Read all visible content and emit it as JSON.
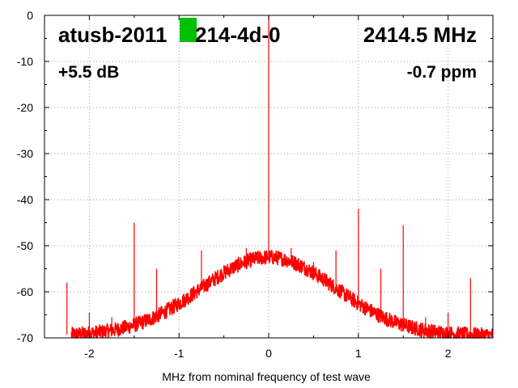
{
  "chart_data": {
    "type": "line",
    "title": "atusb-2011",
    "title_suffix": "214-4d-0",
    "frequency_label": "2414.5 MHz",
    "gain_label": "+5.5 dB",
    "ppm_label": "-0.7 ppm",
    "xlabel": "MHz from nominal frequency of test wave",
    "ylabel": "",
    "xlim": [
      -2.5,
      2.5
    ],
    "ylim": [
      -70,
      0
    ],
    "xticks": [
      -2,
      -1,
      0,
      1,
      2
    ],
    "yticks": [
      0,
      -10,
      -20,
      -30,
      -40,
      -50,
      -60,
      -70
    ],
    "grid": true,
    "line_color": "#ff0000",
    "marker_color": "#00c000",
    "noise_floor": {
      "peak_db": -52.5,
      "edge_db": -69.5,
      "center_mhz": 0,
      "width_mhz": 0.75
    },
    "spurs": [
      {
        "x": -2.25,
        "y": -58
      },
      {
        "x": -2.0,
        "y": -64.5
      },
      {
        "x": -1.75,
        "y": -65.5
      },
      {
        "x": -1.5,
        "y": -45
      },
      {
        "x": -1.25,
        "y": -55
      },
      {
        "x": -1.0,
        "y": -62
      },
      {
        "x": -0.75,
        "y": -51
      },
      {
        "x": -0.5,
        "y": -55
      },
      {
        "x": -0.25,
        "y": -50.5
      },
      {
        "x": 0.0,
        "y": 0
      },
      {
        "x": 0.25,
        "y": -50.5
      },
      {
        "x": 0.5,
        "y": -53.5
      },
      {
        "x": 0.75,
        "y": -51
      },
      {
        "x": 1.0,
        "y": -42
      },
      {
        "x": 1.25,
        "y": -55
      },
      {
        "x": 1.5,
        "y": -45.5
      },
      {
        "x": 1.75,
        "y": -65.5
      },
      {
        "x": 2.0,
        "y": -64.5
      },
      {
        "x": 2.25,
        "y": -57
      }
    ]
  }
}
